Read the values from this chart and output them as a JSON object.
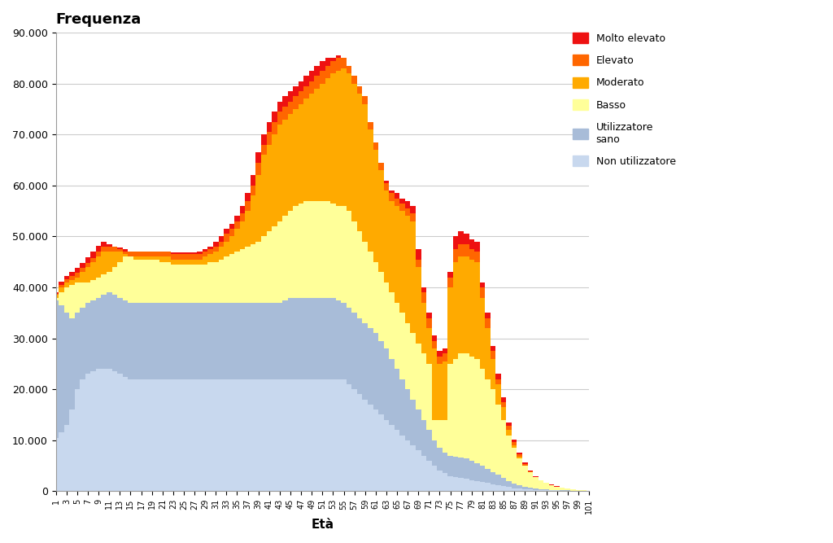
{
  "title": "Frequenza",
  "xlabel": "Età",
  "ylabel": "",
  "ylim": [
    0,
    90000
  ],
  "yticks": [
    0,
    10000,
    20000,
    30000,
    40000,
    50000,
    60000,
    70000,
    80000,
    90000
  ],
  "ytick_labels": [
    "0",
    "10.000",
    "20.000",
    "30.000",
    "40.000",
    "50.000",
    "60.000",
    "70.000",
    "80.000",
    "90.000"
  ],
  "xticks": [
    1,
    3,
    5,
    7,
    9,
    11,
    13,
    15,
    17,
    19,
    21,
    23,
    25,
    27,
    29,
    31,
    33,
    35,
    37,
    39,
    41,
    43,
    45,
    47,
    49,
    51,
    53,
    55,
    57,
    59,
    61,
    63,
    65,
    67,
    69,
    71,
    73,
    75,
    77,
    79,
    81,
    83,
    85,
    87,
    89,
    91,
    93,
    95,
    97,
    99,
    101
  ],
  "colors": {
    "molto_elevato": "#EE1111",
    "elevato": "#FF6600",
    "moderato": "#FFAA00",
    "basso": "#FFFF99",
    "utilizzatore_sano": "#A8BCD8",
    "non_utilizzatore": "#C8D8EE"
  },
  "legend_labels": [
    "Molto elevato",
    "Elevato",
    "Moderato",
    "Basso",
    "Utilizzatore\nsano",
    "Non utilizzatore"
  ],
  "background_color": "#FFFFFF",
  "grid_color": "#CCCCCC"
}
